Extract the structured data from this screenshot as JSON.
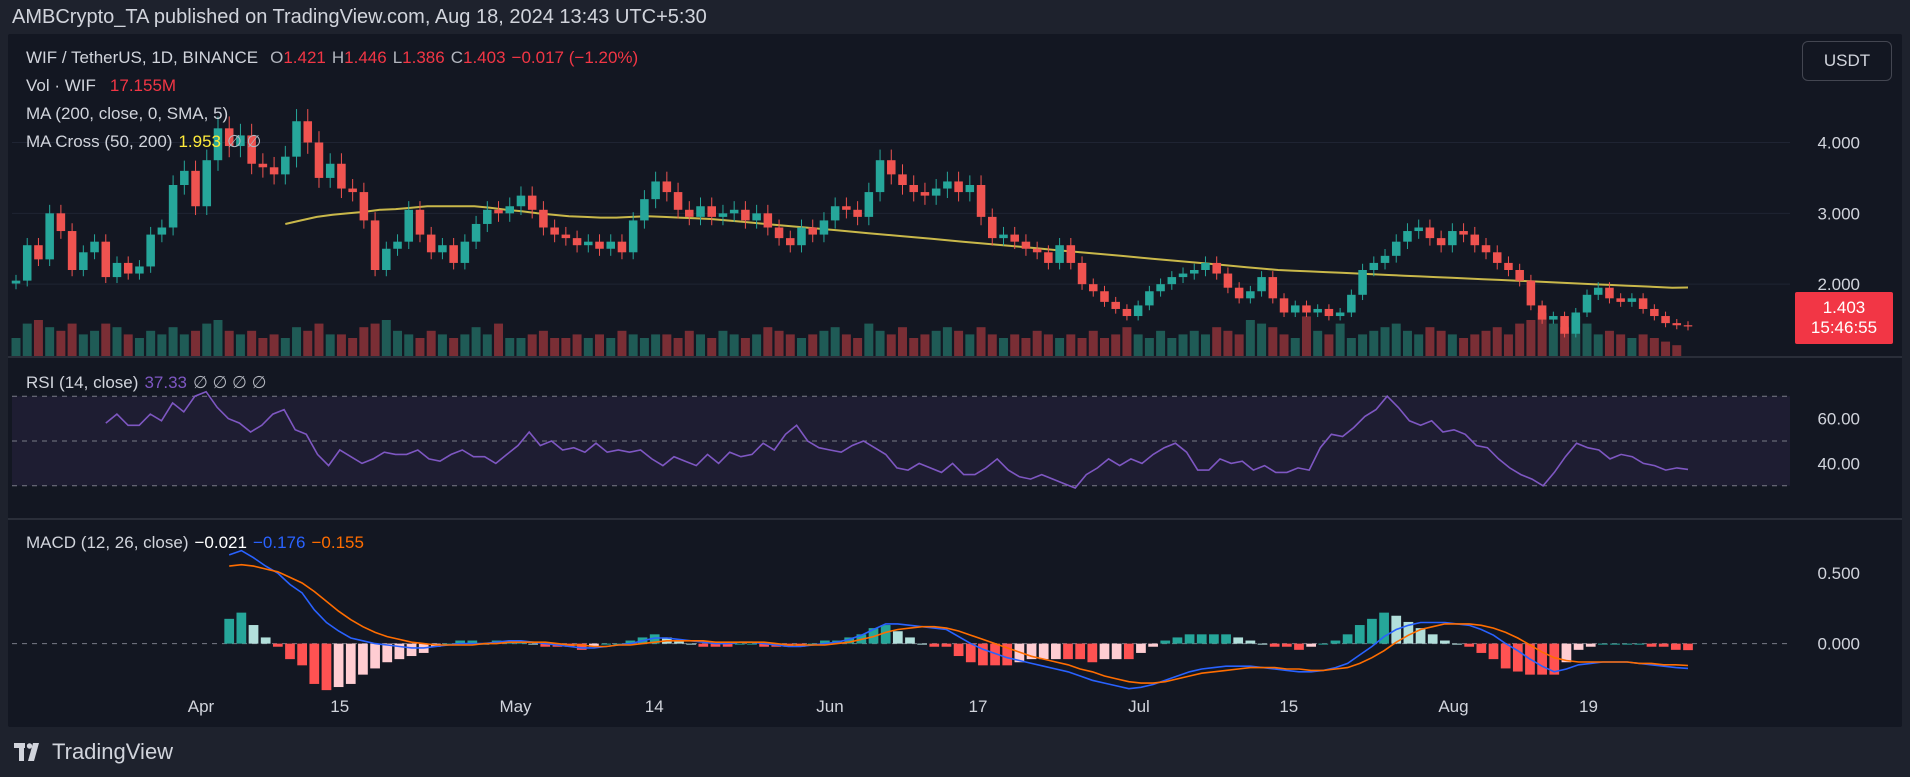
{
  "header": {
    "publisher_line": "AMBCrypto_TA published on TradingView.com, Aug 18, 2024 13:43 UTC+5:30"
  },
  "legend": {
    "symbol": "WIF / TetherUS, 1D, BINANCE",
    "open_label": "O",
    "open": "1.421",
    "high_label": "H",
    "high": "1.446",
    "low_label": "L",
    "low": "1.386",
    "close_label": "C",
    "close": "1.403",
    "change": "−0.017 (−1.20%)",
    "vol_label": "Vol · WIF",
    "vol_value": "17.155M",
    "ma_label": "MA (200, close, 0, SMA, 5)",
    "macross_label": "MA Cross (50, 200)",
    "macross_value": "1.953",
    "macross_tail": "∅ ∅",
    "rsi_label": "RSI (14, close)",
    "rsi_value": "37.33",
    "rsi_tail": "∅ ∅ ∅ ∅",
    "macd_label": "MACD (12, 26, close)",
    "macd_hist": "−0.021",
    "macd_line": "−0.176",
    "macd_signal": "−0.155"
  },
  "currency_button": "USDT",
  "last_price": {
    "price": "1.403",
    "countdown": "15:46:55"
  },
  "footer": {
    "brand": "TradingView"
  },
  "colors": {
    "up": "#26a69a",
    "down": "#ef5350",
    "ma200": "#c9b84a",
    "rsi": "#7e57c2",
    "macd": "#2962ff",
    "signal": "#ff6d00",
    "background": "#131722"
  },
  "chart_data": [
    {
      "type": "candlestick",
      "title": "WIF / TetherUS, 1D, BINANCE",
      "y_axis_ticks": [
        "4.000",
        "3.000",
        "2.000"
      ],
      "x_axis_ticks": [
        "Apr",
        "15",
        "May",
        "14",
        "Jun",
        "17",
        "Jul",
        "15",
        "Aug",
        "19"
      ],
      "last_close": 1.403,
      "ohlc_last": {
        "open": 1.421,
        "high": 1.446,
        "low": 1.386,
        "close": 1.403
      },
      "close_series": [
        2.05,
        2.55,
        2.35,
        3.0,
        2.75,
        2.2,
        2.45,
        2.6,
        2.1,
        2.3,
        2.15,
        2.25,
        2.7,
        2.8,
        3.4,
        3.6,
        3.1,
        3.75,
        4.2,
        3.95,
        4.1,
        3.7,
        3.65,
        3.55,
        3.8,
        4.3,
        4.0,
        3.5,
        3.7,
        3.35,
        3.3,
        2.9,
        2.2,
        2.5,
        2.6,
        3.05,
        2.7,
        2.45,
        2.55,
        2.3,
        2.6,
        2.85,
        3.05,
        3.0,
        3.1,
        3.25,
        3.05,
        2.8,
        2.7,
        2.65,
        2.55,
        2.6,
        2.5,
        2.6,
        2.45,
        2.9,
        3.2,
        3.45,
        3.3,
        3.05,
        2.95,
        3.1,
        2.95,
        3.0,
        3.05,
        2.9,
        3.0,
        2.8,
        2.65,
        2.55,
        2.8,
        2.7,
        2.9,
        3.1,
        3.05,
        2.95,
        3.3,
        3.75,
        3.55,
        3.4,
        3.3,
        3.25,
        3.35,
        3.45,
        3.3,
        3.4,
        2.95,
        2.65,
        2.7,
        2.6,
        2.5,
        2.45,
        2.3,
        2.55,
        2.3,
        2.0,
        1.9,
        1.75,
        1.65,
        1.55,
        1.7,
        1.9,
        2.0,
        2.1,
        2.15,
        2.2,
        2.3,
        2.15,
        1.95,
        1.8,
        1.9,
        2.1,
        1.8,
        1.6,
        1.7,
        1.6,
        1.65,
        1.55,
        1.6,
        1.85,
        2.2,
        2.3,
        2.4,
        2.6,
        2.75,
        2.8,
        2.65,
        2.55,
        2.75,
        2.7,
        2.55,
        2.45,
        2.3,
        2.2,
        2.05,
        1.7,
        1.5,
        1.55,
        1.3,
        1.6,
        1.85,
        1.95,
        1.8,
        1.75,
        1.8,
        1.65,
        1.55,
        1.45,
        1.42,
        1.403
      ],
      "ma200_series_start_index": 24,
      "ma200_series": [
        2.85,
        2.9,
        2.95,
        2.98,
        3.0,
        3.02,
        3.05,
        3.06,
        3.08,
        3.1,
        3.1,
        3.1,
        3.1,
        3.08,
        3.05,
        3.03,
        3.0,
        2.98,
        2.96,
        2.95,
        2.94,
        2.94,
        2.95,
        2.96,
        2.95,
        2.94,
        2.93,
        2.92,
        2.9,
        2.88,
        2.86,
        2.84,
        2.82,
        2.8,
        2.78,
        2.76,
        2.74,
        2.72,
        2.7,
        2.68,
        2.66,
        2.64,
        2.62,
        2.6,
        2.58,
        2.56,
        2.54,
        2.52,
        2.5,
        2.48,
        2.46,
        2.44,
        2.42,
        2.4,
        2.38,
        2.36,
        2.34,
        2.32,
        2.3,
        2.28,
        2.26,
        2.24,
        2.22,
        2.2,
        2.19,
        2.18,
        2.17,
        2.16,
        2.15,
        2.14,
        2.13,
        2.12,
        2.11,
        2.1,
        2.09,
        2.08,
        2.07,
        2.06,
        2.05,
        2.04,
        2.03,
        2.02,
        2.01,
        2.0,
        1.99,
        1.98,
        1.97,
        1.96,
        1.95,
        1.953
      ],
      "volume_series": [
        0.5,
        0.9,
        1.0,
        0.8,
        0.7,
        0.9,
        0.6,
        0.7,
        0.9,
        0.8,
        0.6,
        0.5,
        0.7,
        0.6,
        0.8,
        0.6,
        0.7,
        0.9,
        1.0,
        0.7,
        0.6,
        0.7,
        0.5,
        0.6,
        0.5,
        0.8,
        0.7,
        0.9,
        0.6,
        0.6,
        0.5,
        0.8,
        0.9,
        1.0,
        0.7,
        0.6,
        0.5,
        0.7,
        0.6,
        0.5,
        0.6,
        0.8,
        0.6,
        0.9,
        0.5,
        0.5,
        0.6,
        0.7,
        0.5,
        0.5,
        0.6,
        0.5,
        0.6,
        0.5,
        0.7,
        0.6,
        0.5,
        0.6,
        0.6,
        0.5,
        0.7,
        0.6,
        0.5,
        0.7,
        0.6,
        0.5,
        0.6,
        0.8,
        0.7,
        0.6,
        0.5,
        0.6,
        0.7,
        0.8,
        0.6,
        0.5,
        0.9,
        0.7,
        0.6,
        0.8,
        0.5,
        0.6,
        0.7,
        0.8,
        0.7,
        0.6,
        0.8,
        0.6,
        0.5,
        0.6,
        0.5,
        0.7,
        0.6,
        0.5,
        0.6,
        0.5,
        0.7,
        0.5,
        0.6,
        0.8,
        0.6,
        0.5,
        0.7,
        0.5,
        0.6,
        0.7,
        0.6,
        0.8,
        0.7,
        0.6,
        1.0,
        0.9,
        0.8,
        0.6,
        0.5,
        1.1,
        0.7,
        0.6,
        0.9,
        0.5,
        0.6,
        0.7,
        0.8,
        0.9,
        0.7,
        0.6,
        0.8,
        0.7,
        0.6,
        0.5,
        0.6,
        0.7,
        0.8,
        0.6,
        0.9,
        1.0,
        1.2,
        0.9,
        0.8,
        1.1,
        0.9,
        0.6,
        0.7,
        0.6,
        0.5,
        0.6,
        0.5,
        0.4,
        0.3
      ]
    },
    {
      "type": "line",
      "title": "RSI (14, close)",
      "y_axis_ticks": [
        "60.00",
        "40.00"
      ],
      "bands": [
        30,
        50,
        70
      ],
      "last_value": 37.33,
      "start_index": 8,
      "values": [
        58,
        62,
        57,
        57,
        62,
        59,
        67,
        63,
        70,
        72,
        65,
        60,
        58,
        54,
        57,
        62,
        64,
        55,
        53,
        44,
        39,
        46,
        43,
        40,
        42,
        45,
        44,
        44,
        46,
        42,
        41,
        44,
        46,
        43,
        43,
        40,
        44,
        48,
        54,
        48,
        50,
        46,
        47,
        45,
        49,
        45,
        46,
        45,
        46,
        42,
        39,
        43,
        41,
        39,
        44,
        40,
        45,
        43,
        44,
        49,
        46,
        53,
        57,
        50,
        47,
        46,
        45,
        48,
        50,
        47,
        44,
        38,
        37,
        40,
        38,
        36,
        40,
        35,
        35,
        38,
        42,
        37,
        34,
        33,
        35,
        33,
        31,
        29,
        35,
        38,
        42,
        39,
        42,
        40,
        44,
        47,
        49,
        45,
        37,
        37,
        42,
        40,
        41,
        37,
        39,
        36,
        36,
        38,
        37,
        47,
        53,
        52,
        56,
        61,
        64,
        70,
        65,
        59,
        57,
        59,
        54,
        55,
        53,
        48,
        47,
        42,
        38,
        35,
        33,
        30,
        36,
        43,
        49,
        47,
        46,
        42,
        44,
        43,
        40,
        39,
        37,
        38,
        37.33
      ]
    },
    {
      "type": "line",
      "title": "MACD (12, 26, close)",
      "y_axis_ticks": [
        "0.500",
        "0.000"
      ],
      "series": [
        {
          "name": "MACD",
          "last_value": -0.176
        },
        {
          "name": "Signal",
          "last_value": -0.155
        },
        {
          "name": "Histogram",
          "last_value": -0.021
        }
      ],
      "start_index": 19,
      "macd_values": [
        0.63,
        0.66,
        0.61,
        0.55,
        0.5,
        0.42,
        0.36,
        0.24,
        0.15,
        0.09,
        0.04,
        0.02,
        0.0,
        -0.01,
        -0.02,
        -0.03,
        -0.03,
        -0.02,
        -0.01,
        0.0,
        0.0,
        0.0,
        0.01,
        0.02,
        0.02,
        0.01,
        0.0,
        -0.01,
        -0.02,
        -0.03,
        -0.03,
        -0.02,
        -0.01,
        0.0,
        0.02,
        0.04,
        0.04,
        0.03,
        0.02,
        0.01,
        0.0,
        0.0,
        0.01,
        0.01,
        0.0,
        -0.01,
        -0.02,
        -0.02,
        -0.01,
        0.0,
        0.01,
        0.03,
        0.06,
        0.1,
        0.14,
        0.14,
        0.13,
        0.12,
        0.11,
        0.1,
        0.05,
        0.0,
        -0.04,
        -0.07,
        -0.1,
        -0.12,
        -0.14,
        -0.16,
        -0.18,
        -0.2,
        -0.23,
        -0.26,
        -0.28,
        -0.3,
        -0.32,
        -0.31,
        -0.29,
        -0.26,
        -0.23,
        -0.2,
        -0.18,
        -0.17,
        -0.16,
        -0.16,
        -0.16,
        -0.17,
        -0.18,
        -0.19,
        -0.2,
        -0.2,
        -0.19,
        -0.17,
        -0.14,
        -0.08,
        -0.02,
        0.05,
        0.1,
        0.13,
        0.15,
        0.15,
        0.15,
        0.14,
        0.13,
        0.1,
        0.06,
        0.0,
        -0.05,
        -0.11,
        -0.16,
        -0.2,
        -0.18,
        -0.15,
        -0.14,
        -0.13,
        -0.13,
        -0.13,
        -0.14,
        -0.15,
        -0.16,
        -0.17,
        -0.176
      ],
      "signal_values": [
        0.55,
        0.56,
        0.55,
        0.53,
        0.51,
        0.47,
        0.43,
        0.37,
        0.3,
        0.23,
        0.17,
        0.12,
        0.08,
        0.05,
        0.03,
        0.01,
        0.0,
        -0.01,
        -0.01,
        -0.01,
        -0.01,
        0.0,
        0.0,
        0.01,
        0.01,
        0.01,
        0.01,
        0.0,
        -0.01,
        -0.01,
        -0.02,
        -0.02,
        -0.01,
        -0.01,
        0.0,
        0.01,
        0.02,
        0.02,
        0.02,
        0.02,
        0.01,
        0.01,
        0.01,
        0.01,
        0.01,
        0.0,
        -0.01,
        -0.01,
        -0.01,
        -0.01,
        0.0,
        0.01,
        0.03,
        0.05,
        0.08,
        0.1,
        0.11,
        0.12,
        0.12,
        0.11,
        0.09,
        0.06,
        0.03,
        0.0,
        -0.03,
        -0.06,
        -0.09,
        -0.11,
        -0.13,
        -0.15,
        -0.18,
        -0.2,
        -0.23,
        -0.25,
        -0.27,
        -0.28,
        -0.28,
        -0.27,
        -0.25,
        -0.23,
        -0.21,
        -0.2,
        -0.19,
        -0.18,
        -0.17,
        -0.17,
        -0.17,
        -0.18,
        -0.18,
        -0.19,
        -0.19,
        -0.18,
        -0.17,
        -0.14,
        -0.1,
        -0.05,
        0.01,
        0.06,
        0.1,
        0.12,
        0.14,
        0.14,
        0.14,
        0.13,
        0.11,
        0.08,
        0.04,
        -0.01,
        -0.06,
        -0.1,
        -0.12,
        -0.13,
        -0.13,
        -0.13,
        -0.13,
        -0.13,
        -0.14,
        -0.14,
        -0.15,
        -0.15,
        -0.155
      ]
    }
  ]
}
